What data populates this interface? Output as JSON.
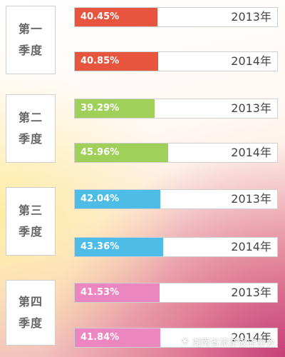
{
  "chart_data": {
    "type": "bar",
    "orientation": "horizontal",
    "unit": "%",
    "xlim": [
      0,
      100
    ],
    "quarters": [
      {
        "label": [
          "第一",
          "季度"
        ],
        "color": "#e8553f",
        "bars": [
          {
            "year": "2013年",
            "value": 40.45,
            "label": "40.45%"
          },
          {
            "year": "2014年",
            "value": 40.85,
            "label": "40.85%"
          }
        ]
      },
      {
        "label": [
          "第二",
          "季度"
        ],
        "color": "#9fd05a",
        "bars": [
          {
            "year": "2013年",
            "value": 39.29,
            "label": "39.29%"
          },
          {
            "year": "2014年",
            "value": 45.96,
            "label": "45.96%"
          }
        ]
      },
      {
        "label": [
          "第三",
          "季度"
        ],
        "color": "#4dbde8",
        "bars": [
          {
            "year": "2013年",
            "value": 42.04,
            "label": "42.04%"
          },
          {
            "year": "2014年",
            "value": 43.36,
            "label": "43.36%"
          }
        ]
      },
      {
        "label": [
          "第四",
          "季度"
        ],
        "color": "#ec86c0",
        "bars": [
          {
            "year": "2013年",
            "value": 41.53,
            "label": "41.53%"
          },
          {
            "year": "2014年",
            "value": 41.84,
            "label": "41.84%"
          }
        ]
      }
    ]
  },
  "watermark": {
    "icon": "wechat-icon",
    "text": "湖南省旅游饭店协会"
  }
}
